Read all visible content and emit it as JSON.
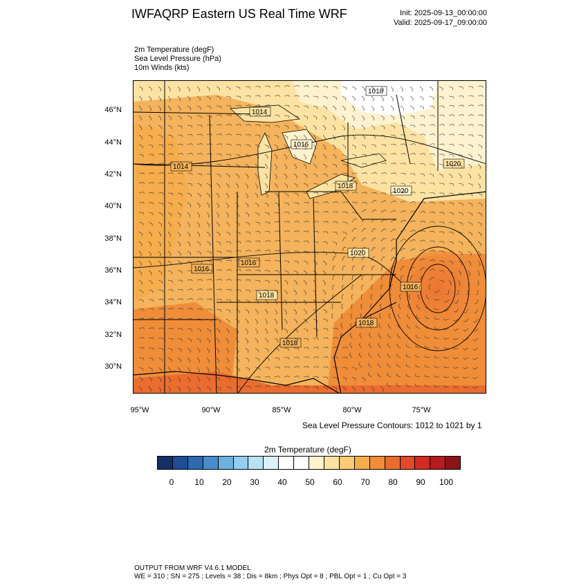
{
  "header": {
    "title": "IWFAQRP Eastern US Real Time WRF",
    "init": "Init: 2025-09-13_00:00:00",
    "valid": "Valid: 2025-09-17_09:00:00"
  },
  "fields": [
    "2m Temperature   (degF)",
    "Sea Level Pressure   (hPa)",
    "10m Winds   (kts)"
  ],
  "axes": {
    "lat_labels": [
      "46°N",
      "44°N",
      "42°N",
      "40°N",
      "38°N",
      "36°N",
      "34°N",
      "32°N",
      "30°N"
    ],
    "lon_labels": [
      "95°W",
      "90°W",
      "85°W",
      "80°W",
      "75°W"
    ]
  },
  "isobar_labels": [
    "1018",
    "1014",
    "1016",
    "1014",
    "1018",
    "1020",
    "1020",
    "1016",
    "1016",
    "1020",
    "1018",
    "1016",
    "1018",
    "1018"
  ],
  "slp_note": "Sea Level Pressure Contours: 1012 to 1021 by 1",
  "colorbar": {
    "title": "2m Temperature  (degF)",
    "ticks": [
      "0",
      "10",
      "20",
      "30",
      "40",
      "50",
      "60",
      "70",
      "80",
      "90",
      "100"
    ],
    "colors": [
      "#172f64",
      "#1f4c94",
      "#2d6ab0",
      "#4a8ccb",
      "#6db0de",
      "#94cdf0",
      "#b9e1f6",
      "#dcf1fb",
      "#ffffff",
      "#ffffff",
      "#fff2cf",
      "#fde3a3",
      "#fbca77",
      "#f6ad4d",
      "#f08d39",
      "#ea6c2f",
      "#e14a2a",
      "#d12c25",
      "#b41c1f",
      "#8c1418"
    ]
  },
  "footer": {
    "line1": "OUTPUT FROM WRF V4.6.1 MODEL",
    "line2": "WE = 310 ; SN = 275 ; Levels = 38 ; Dis = 8km ; Phys Opt = 8 ; PBL Opt = 1 ; Cu Opt = 3"
  }
}
